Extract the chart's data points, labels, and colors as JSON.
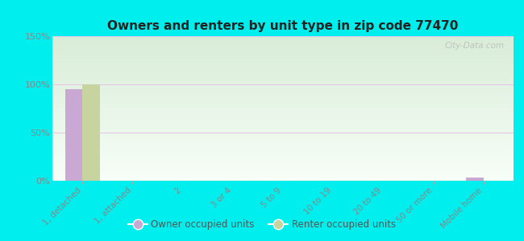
{
  "title": "Owners and renters by unit type in zip code 77470",
  "categories": [
    "1, detached",
    "1, attached",
    "2",
    "3 or 4",
    "5 to 9",
    "10 to 19",
    "20 to 49",
    "50 or more",
    "Mobile home"
  ],
  "owner_values": [
    95,
    0,
    0,
    0,
    0,
    0,
    0,
    0,
    3
  ],
  "renter_values": [
    100,
    0,
    0,
    0,
    0,
    0,
    0,
    0,
    0
  ],
  "owner_color": "#c9a8d4",
  "renter_color": "#c8d4a0",
  "ylim": [
    0,
    150
  ],
  "yticks": [
    0,
    50,
    100,
    150
  ],
  "ytick_labels": [
    "0%",
    "50%",
    "100%",
    "150%"
  ],
  "outer_background": "#00eeee",
  "plot_bg_top": "#f0faf0",
  "plot_bg_bottom": "#e0f0e0",
  "watermark": "City-Data.com",
  "bar_width": 0.35,
  "legend_owner": "Owner occupied units",
  "legend_renter": "Renter occupied units",
  "grid_color": "#e8c8e8",
  "tick_color": "#888888",
  "title_color": "#222222"
}
